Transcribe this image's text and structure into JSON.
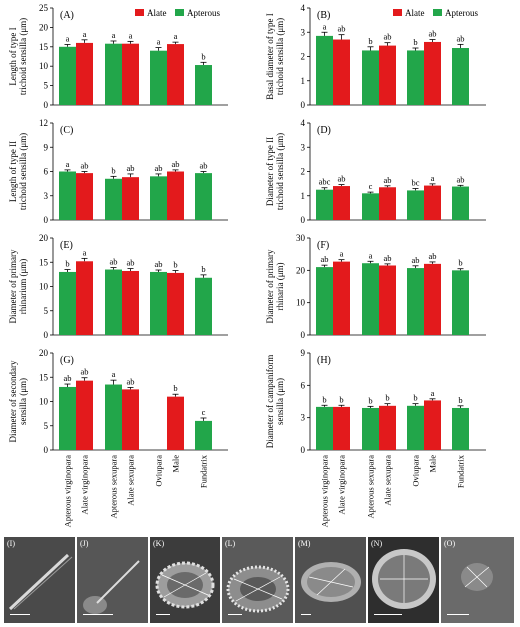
{
  "chart_data": [
    {
      "panel_label": "(A)",
      "type": "bar",
      "ylabel_lines": [
        "Length of type I",
        "trichoid sensilla (μm)"
      ],
      "ylim": [
        0,
        25
      ],
      "yticks": [
        0,
        5,
        10,
        15,
        20,
        25
      ],
      "legend": [
        "Alate",
        "Apterous"
      ],
      "legend_position": "top-right",
      "bars": [
        {
          "value": 15.0,
          "err": 0.6,
          "color": "green",
          "sig": "a"
        },
        {
          "value": 16.0,
          "err": 0.8,
          "color": "red",
          "sig": "a"
        },
        {
          "value": 15.8,
          "err": 0.7,
          "color": "green",
          "sig": "a"
        },
        {
          "value": 15.8,
          "err": 0.6,
          "color": "red",
          "sig": "a"
        },
        {
          "value": 14.0,
          "err": 0.8,
          "color": "green",
          "sig": "a"
        },
        {
          "value": 15.7,
          "err": 0.5,
          "color": "red",
          "sig": "a"
        },
        {
          "value": 10.3,
          "err": 0.7,
          "color": "green",
          "sig": "b"
        }
      ]
    },
    {
      "panel_label": "(B)",
      "type": "bar",
      "ylabel_lines": [
        "Basal diameter of type I",
        "trichoid sensilla (μm)"
      ],
      "ylim": [
        0,
        4
      ],
      "yticks": [
        0,
        1,
        2,
        3,
        4
      ],
      "legend": [
        "Alate",
        "Apterous"
      ],
      "legend_position": "top-right",
      "bars": [
        {
          "value": 2.85,
          "err": 0.15,
          "color": "green",
          "sig": "a"
        },
        {
          "value": 2.7,
          "err": 0.2,
          "color": "red",
          "sig": "ab"
        },
        {
          "value": 2.25,
          "err": 0.15,
          "color": "green",
          "sig": "b"
        },
        {
          "value": 2.45,
          "err": 0.12,
          "color": "red",
          "sig": "ab"
        },
        {
          "value": 2.25,
          "err": 0.1,
          "color": "green",
          "sig": "b"
        },
        {
          "value": 2.6,
          "err": 0.1,
          "color": "red",
          "sig": "ab"
        },
        {
          "value": 2.35,
          "err": 0.15,
          "color": "green",
          "sig": "ab"
        }
      ]
    },
    {
      "panel_label": "(C)",
      "type": "bar",
      "ylabel_lines": [
        "Length of type II",
        "trichoid sensilla (μm)"
      ],
      "ylim": [
        0,
        12
      ],
      "yticks": [
        0,
        3,
        6,
        9,
        12
      ],
      "bars": [
        {
          "value": 6.0,
          "err": 0.2,
          "color": "green",
          "sig": "a"
        },
        {
          "value": 5.8,
          "err": 0.2,
          "color": "red",
          "sig": "ab"
        },
        {
          "value": 5.1,
          "err": 0.3,
          "color": "green",
          "sig": "b"
        },
        {
          "value": 5.3,
          "err": 0.4,
          "color": "red",
          "sig": "ab"
        },
        {
          "value": 5.4,
          "err": 0.3,
          "color": "green",
          "sig": "ab"
        },
        {
          "value": 6.0,
          "err": 0.2,
          "color": "red",
          "sig": "ab"
        },
        {
          "value": 5.8,
          "err": 0.2,
          "color": "green",
          "sig": "ab"
        }
      ]
    },
    {
      "panel_label": "(D)",
      "type": "bar",
      "ylabel_lines": [
        "Diameter of type II",
        "trichoid sensilla (μm)"
      ],
      "ylim": [
        0,
        4
      ],
      "yticks": [
        0,
        1,
        2,
        3,
        4
      ],
      "bars": [
        {
          "value": 1.25,
          "err": 0.08,
          "color": "green",
          "sig": "abc"
        },
        {
          "value": 1.4,
          "err": 0.06,
          "color": "red",
          "sig": "ab"
        },
        {
          "value": 1.1,
          "err": 0.05,
          "color": "green",
          "sig": "c"
        },
        {
          "value": 1.35,
          "err": 0.06,
          "color": "red",
          "sig": "ab"
        },
        {
          "value": 1.22,
          "err": 0.08,
          "color": "green",
          "sig": "bc"
        },
        {
          "value": 1.42,
          "err": 0.07,
          "color": "red",
          "sig": "a"
        },
        {
          "value": 1.38,
          "err": 0.05,
          "color": "green",
          "sig": "ab"
        }
      ]
    },
    {
      "panel_label": "(E)",
      "type": "bar",
      "ylabel_lines": [
        "Diameter of primary",
        "rhinarium (μm)"
      ],
      "ylim": [
        0,
        20
      ],
      "yticks": [
        0,
        5,
        10,
        15,
        20
      ],
      "bars": [
        {
          "value": 13.0,
          "err": 0.5,
          "color": "green",
          "sig": "b"
        },
        {
          "value": 15.2,
          "err": 0.6,
          "color": "red",
          "sig": "a"
        },
        {
          "value": 13.5,
          "err": 0.4,
          "color": "green",
          "sig": "ab"
        },
        {
          "value": 13.2,
          "err": 0.5,
          "color": "red",
          "sig": "ab"
        },
        {
          "value": 13.0,
          "err": 0.4,
          "color": "green",
          "sig": "ab"
        },
        {
          "value": 12.8,
          "err": 0.5,
          "color": "red",
          "sig": "b"
        },
        {
          "value": 11.8,
          "err": 0.6,
          "color": "green",
          "sig": "b"
        }
      ]
    },
    {
      "panel_label": "(F)",
      "type": "bar",
      "ylabel_lines": [
        "Diameter of primary",
        "rhinaria (μm)"
      ],
      "ylim": [
        0,
        30
      ],
      "yticks": [
        0,
        10,
        20,
        30
      ],
      "bars": [
        {
          "value": 21.0,
          "err": 0.6,
          "color": "green",
          "sig": "ab"
        },
        {
          "value": 22.7,
          "err": 0.6,
          "color": "red",
          "sig": "a"
        },
        {
          "value": 22.2,
          "err": 0.6,
          "color": "green",
          "sig": "a"
        },
        {
          "value": 21.5,
          "err": 0.5,
          "color": "red",
          "sig": "ab"
        },
        {
          "value": 20.7,
          "err": 0.7,
          "color": "green",
          "sig": "ab"
        },
        {
          "value": 22.0,
          "err": 0.6,
          "color": "red",
          "sig": "ab"
        },
        {
          "value": 20.0,
          "err": 0.5,
          "color": "green",
          "sig": "b"
        }
      ]
    },
    {
      "panel_label": "(G)",
      "type": "bar",
      "ylabel_lines": [
        "Diameter of secondary",
        "sensilla (μm)"
      ],
      "ylim": [
        0,
        20
      ],
      "yticks": [
        0,
        5,
        10,
        15,
        20
      ],
      "bars": [
        {
          "value": 13.0,
          "err": 0.6,
          "color": "green",
          "sig": "ab"
        },
        {
          "value": 14.3,
          "err": 0.6,
          "color": "red",
          "sig": "ab"
        },
        {
          "value": 13.5,
          "err": 0.9,
          "color": "green",
          "sig": "a"
        },
        {
          "value": 12.5,
          "err": 0.4,
          "color": "red",
          "sig": "ab"
        },
        {
          "value": null,
          "err": null,
          "color": "green",
          "sig": ""
        },
        {
          "value": 11.0,
          "err": 0.5,
          "color": "red",
          "sig": "b"
        },
        {
          "value": 6.0,
          "err": 0.6,
          "color": "green",
          "sig": "c"
        }
      ]
    },
    {
      "panel_label": "(H)",
      "type": "bar",
      "ylabel_lines": [
        "Diameter of campaniform",
        "sensilla (μm)"
      ],
      "ylim": [
        0,
        9
      ],
      "yticks": [
        0,
        3,
        6,
        9
      ],
      "bars": [
        {
          "value": 4.0,
          "err": 0.15,
          "color": "green",
          "sig": "b"
        },
        {
          "value": 4.0,
          "err": 0.15,
          "color": "red",
          "sig": "b"
        },
        {
          "value": 3.9,
          "err": 0.15,
          "color": "green",
          "sig": "b"
        },
        {
          "value": 4.1,
          "err": 0.2,
          "color": "red",
          "sig": "b"
        },
        {
          "value": 4.1,
          "err": 0.2,
          "color": "green",
          "sig": "b"
        },
        {
          "value": 4.6,
          "err": 0.15,
          "color": "red",
          "sig": "a"
        },
        {
          "value": 3.9,
          "err": 0.2,
          "color": "green",
          "sig": "b"
        }
      ]
    }
  ],
  "categories": [
    "Apterous virginopara",
    "Alate virginopara",
    "Apterous sexupara",
    "Alate sexupara",
    "Oviupara",
    "Male",
    "Fundatrix"
  ],
  "legend": {
    "alate": "Alate",
    "apterous": "Apterous"
  },
  "colors": {
    "alate": "#e31a1c",
    "apterous": "#22a64a",
    "axis": "#000000"
  },
  "micrographs": [
    {
      "label": "(I)",
      "subject": "trichoid-sensillum-type-I"
    },
    {
      "label": "(J)",
      "subject": "trichoid-sensillum-type-II"
    },
    {
      "label": "(K)",
      "subject": "primary-rhinarium"
    },
    {
      "label": "(L)",
      "subject": "primary-rhinaria"
    },
    {
      "label": "(M)",
      "subject": "secondary-sensillum"
    },
    {
      "label": "(N)",
      "subject": "secondary-sensillum-close-up"
    },
    {
      "label": "(O)",
      "subject": "campaniform-sensillum"
    }
  ]
}
